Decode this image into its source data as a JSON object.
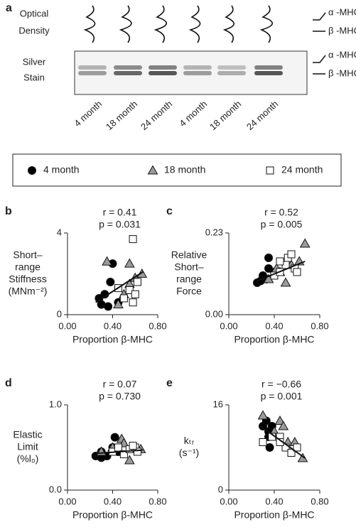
{
  "panel_a": {
    "label": "a",
    "rows": [
      [
        "Optical",
        "Density"
      ],
      [
        "Silver",
        "Stain"
      ]
    ],
    "bands": [
      "α -MHC",
      "β -MHC"
    ],
    "lanes": [
      "4 month",
      "18 month",
      "24 month",
      "4 month",
      "18 month",
      "24 month"
    ]
  },
  "chart_data": [
    {
      "type": "scatter",
      "panel": "b",
      "annotations": [
        "r = 0.41",
        "p = 0.031"
      ],
      "xlabel": "Proportion β-MHC",
      "ylabel": [
        "Short–",
        "range",
        "Stiffness",
        "(MNm⁻²)"
      ],
      "xlim": [
        0,
        0.8
      ],
      "xticks": [
        {
          "value": 0,
          "label": "0.00"
        },
        {
          "value": 0.4,
          "label": "0.40"
        },
        {
          "value": 0.8,
          "label": "0.80"
        }
      ],
      "ylim": [
        0,
        4
      ],
      "yticks": [
        0,
        4
      ],
      "series": [
        {
          "name": "4 month",
          "color": "#000000",
          "x": [
            0.28,
            0.3,
            0.33,
            0.36,
            0.38,
            0.4,
            0.45
          ],
          "values": [
            0.8,
            0.5,
            1.0,
            0.4,
            1.6,
            2.5,
            0.6
          ]
        },
        {
          "name": "18 month",
          "color": "#9a9a9a",
          "x": [
            0.35,
            0.45,
            0.5,
            0.55,
            0.55,
            0.6,
            0.66
          ],
          "values": [
            2.6,
            0.5,
            1.0,
            1.5,
            2.5,
            1.8,
            2.0
          ]
        },
        {
          "name": "24 month",
          "color": "#ffffff",
          "x": [
            0.5,
            0.55,
            0.58,
            0.6,
            0.45,
            0.62,
            0.58
          ],
          "values": [
            0.8,
            1.2,
            0.6,
            1.0,
            1.3,
            1.6,
            3.7
          ]
        }
      ],
      "trend_x": [
        0.25,
        0.67
      ],
      "trend_y": [
        0.6,
        2.1
      ]
    },
    {
      "type": "scatter",
      "panel": "c",
      "annotations": [
        "r = 0.52",
        "p = 0.005"
      ],
      "xlabel": "Proportion β-MHC",
      "ylabel": [
        "Relative",
        "Short–",
        "range",
        "Force"
      ],
      "xlim": [
        0,
        0.8
      ],
      "xticks": [
        {
          "value": 0,
          "label": "0.00"
        },
        {
          "value": 0.4,
          "label": "0.40"
        },
        {
          "value": 0.8,
          "label": "0.80"
        }
      ],
      "ylim": [
        0,
        0.23
      ],
      "yticks": [
        {
          "value": 0,
          "label": "0.00"
        },
        0.23
      ],
      "series": [
        {
          "name": "4 month",
          "color": "#000000",
          "x": [
            0.25,
            0.28,
            0.33,
            0.35,
            0.35,
            0.4,
            0.3
          ],
          "values": [
            0.09,
            0.095,
            0.1,
            0.16,
            0.13,
            0.12,
            0.11
          ]
        },
        {
          "name": "18 month",
          "color": "#9a9a9a",
          "x": [
            0.35,
            0.42,
            0.45,
            0.5,
            0.55,
            0.62,
            0.67
          ],
          "values": [
            0.1,
            0.13,
            0.12,
            0.09,
            0.14,
            0.15,
            0.2
          ]
        },
        {
          "name": "24 month",
          "color": "#ffffff",
          "x": [
            0.4,
            0.45,
            0.5,
            0.52,
            0.55,
            0.58,
            0.6,
            0.45
          ],
          "values": [
            0.11,
            0.12,
            0.14,
            0.16,
            0.17,
            0.13,
            0.12,
            0.15
          ]
        }
      ],
      "trend_x": [
        0.25,
        0.67
      ],
      "trend_y": [
        0.095,
        0.15
      ]
    },
    {
      "type": "scatter",
      "panel": "d",
      "annotations": [
        "r = 0.07",
        "p = 0.730"
      ],
      "xlabel": "Proportion β-MHC",
      "ylabel": [
        "Elastic",
        "Limit",
        "(%l₀)"
      ],
      "xlim": [
        0,
        0.8
      ],
      "xticks": [
        {
          "value": 0,
          "label": "0.00"
        },
        {
          "value": 0.4,
          "label": "0.40"
        },
        {
          "value": 0.8,
          "label": "0.80"
        }
      ],
      "ylim": [
        0,
        1
      ],
      "yticks": [
        {
          "value": 0,
          "label": "0.0"
        },
        {
          "value": 1,
          "label": "1.0"
        }
      ],
      "series": [
        {
          "name": "4 month",
          "color": "#000000",
          "x": [
            0.25,
            0.3,
            0.35,
            0.4,
            0.42,
            0.45,
            0.3
          ],
          "values": [
            0.4,
            0.45,
            0.4,
            0.5,
            0.62,
            0.45,
            0.38
          ]
        },
        {
          "name": "18 month",
          "color": "#9a9a9a",
          "x": [
            0.3,
            0.4,
            0.48,
            0.55,
            0.6,
            0.65,
            0.5
          ],
          "values": [
            0.45,
            0.5,
            0.6,
            0.35,
            0.5,
            0.48,
            0.55
          ]
        },
        {
          "name": "24 month",
          "color": "#ffffff",
          "x": [
            0.4,
            0.45,
            0.5,
            0.55,
            0.6,
            0.62,
            0.58
          ],
          "values": [
            0.45,
            0.5,
            0.42,
            0.48,
            0.5,
            0.45,
            0.52
          ]
        }
      ],
      "trend_x": [
        0.25,
        0.67
      ],
      "trend_y": [
        0.43,
        0.47
      ]
    },
    {
      "type": "scatter",
      "panel": "e",
      "annotations": [
        "r = −0.66",
        "p = 0.001"
      ],
      "xlabel": "Proportion β-MHC",
      "ylabel": [
        "kₜᵣ",
        "(s⁻¹)"
      ],
      "xlim": [
        0,
        0.8
      ],
      "xticks": [
        {
          "value": 0,
          "label": "0.00"
        },
        {
          "value": 0.4,
          "label": "0.40"
        },
        {
          "value": 0.8,
          "label": "0.80"
        }
      ],
      "ylim": [
        0,
        16
      ],
      "yticks": [
        0,
        16
      ],
      "series": [
        {
          "name": "4 month",
          "color": "#000000",
          "x": [
            0.3,
            0.33,
            0.35,
            0.36,
            0.38,
            0.35
          ],
          "values": [
            12,
            13,
            10,
            8,
            12,
            11
          ]
        },
        {
          "name": "18 month",
          "color": "#9a9a9a",
          "x": [
            0.3,
            0.4,
            0.45,
            0.48,
            0.52,
            0.58,
            0.65
          ],
          "values": [
            14,
            11,
            13,
            12,
            9,
            9,
            6
          ]
        },
        {
          "name": "24 month",
          "color": "#ffffff",
          "x": [
            0.3,
            0.38,
            0.45,
            0.5,
            0.55,
            0.6,
            0.45
          ],
          "values": [
            9,
            10,
            10,
            8,
            7,
            8,
            9
          ]
        }
      ],
      "trend_x": [
        0.28,
        0.67
      ],
      "trend_y": [
        12,
        6
      ]
    }
  ]
}
